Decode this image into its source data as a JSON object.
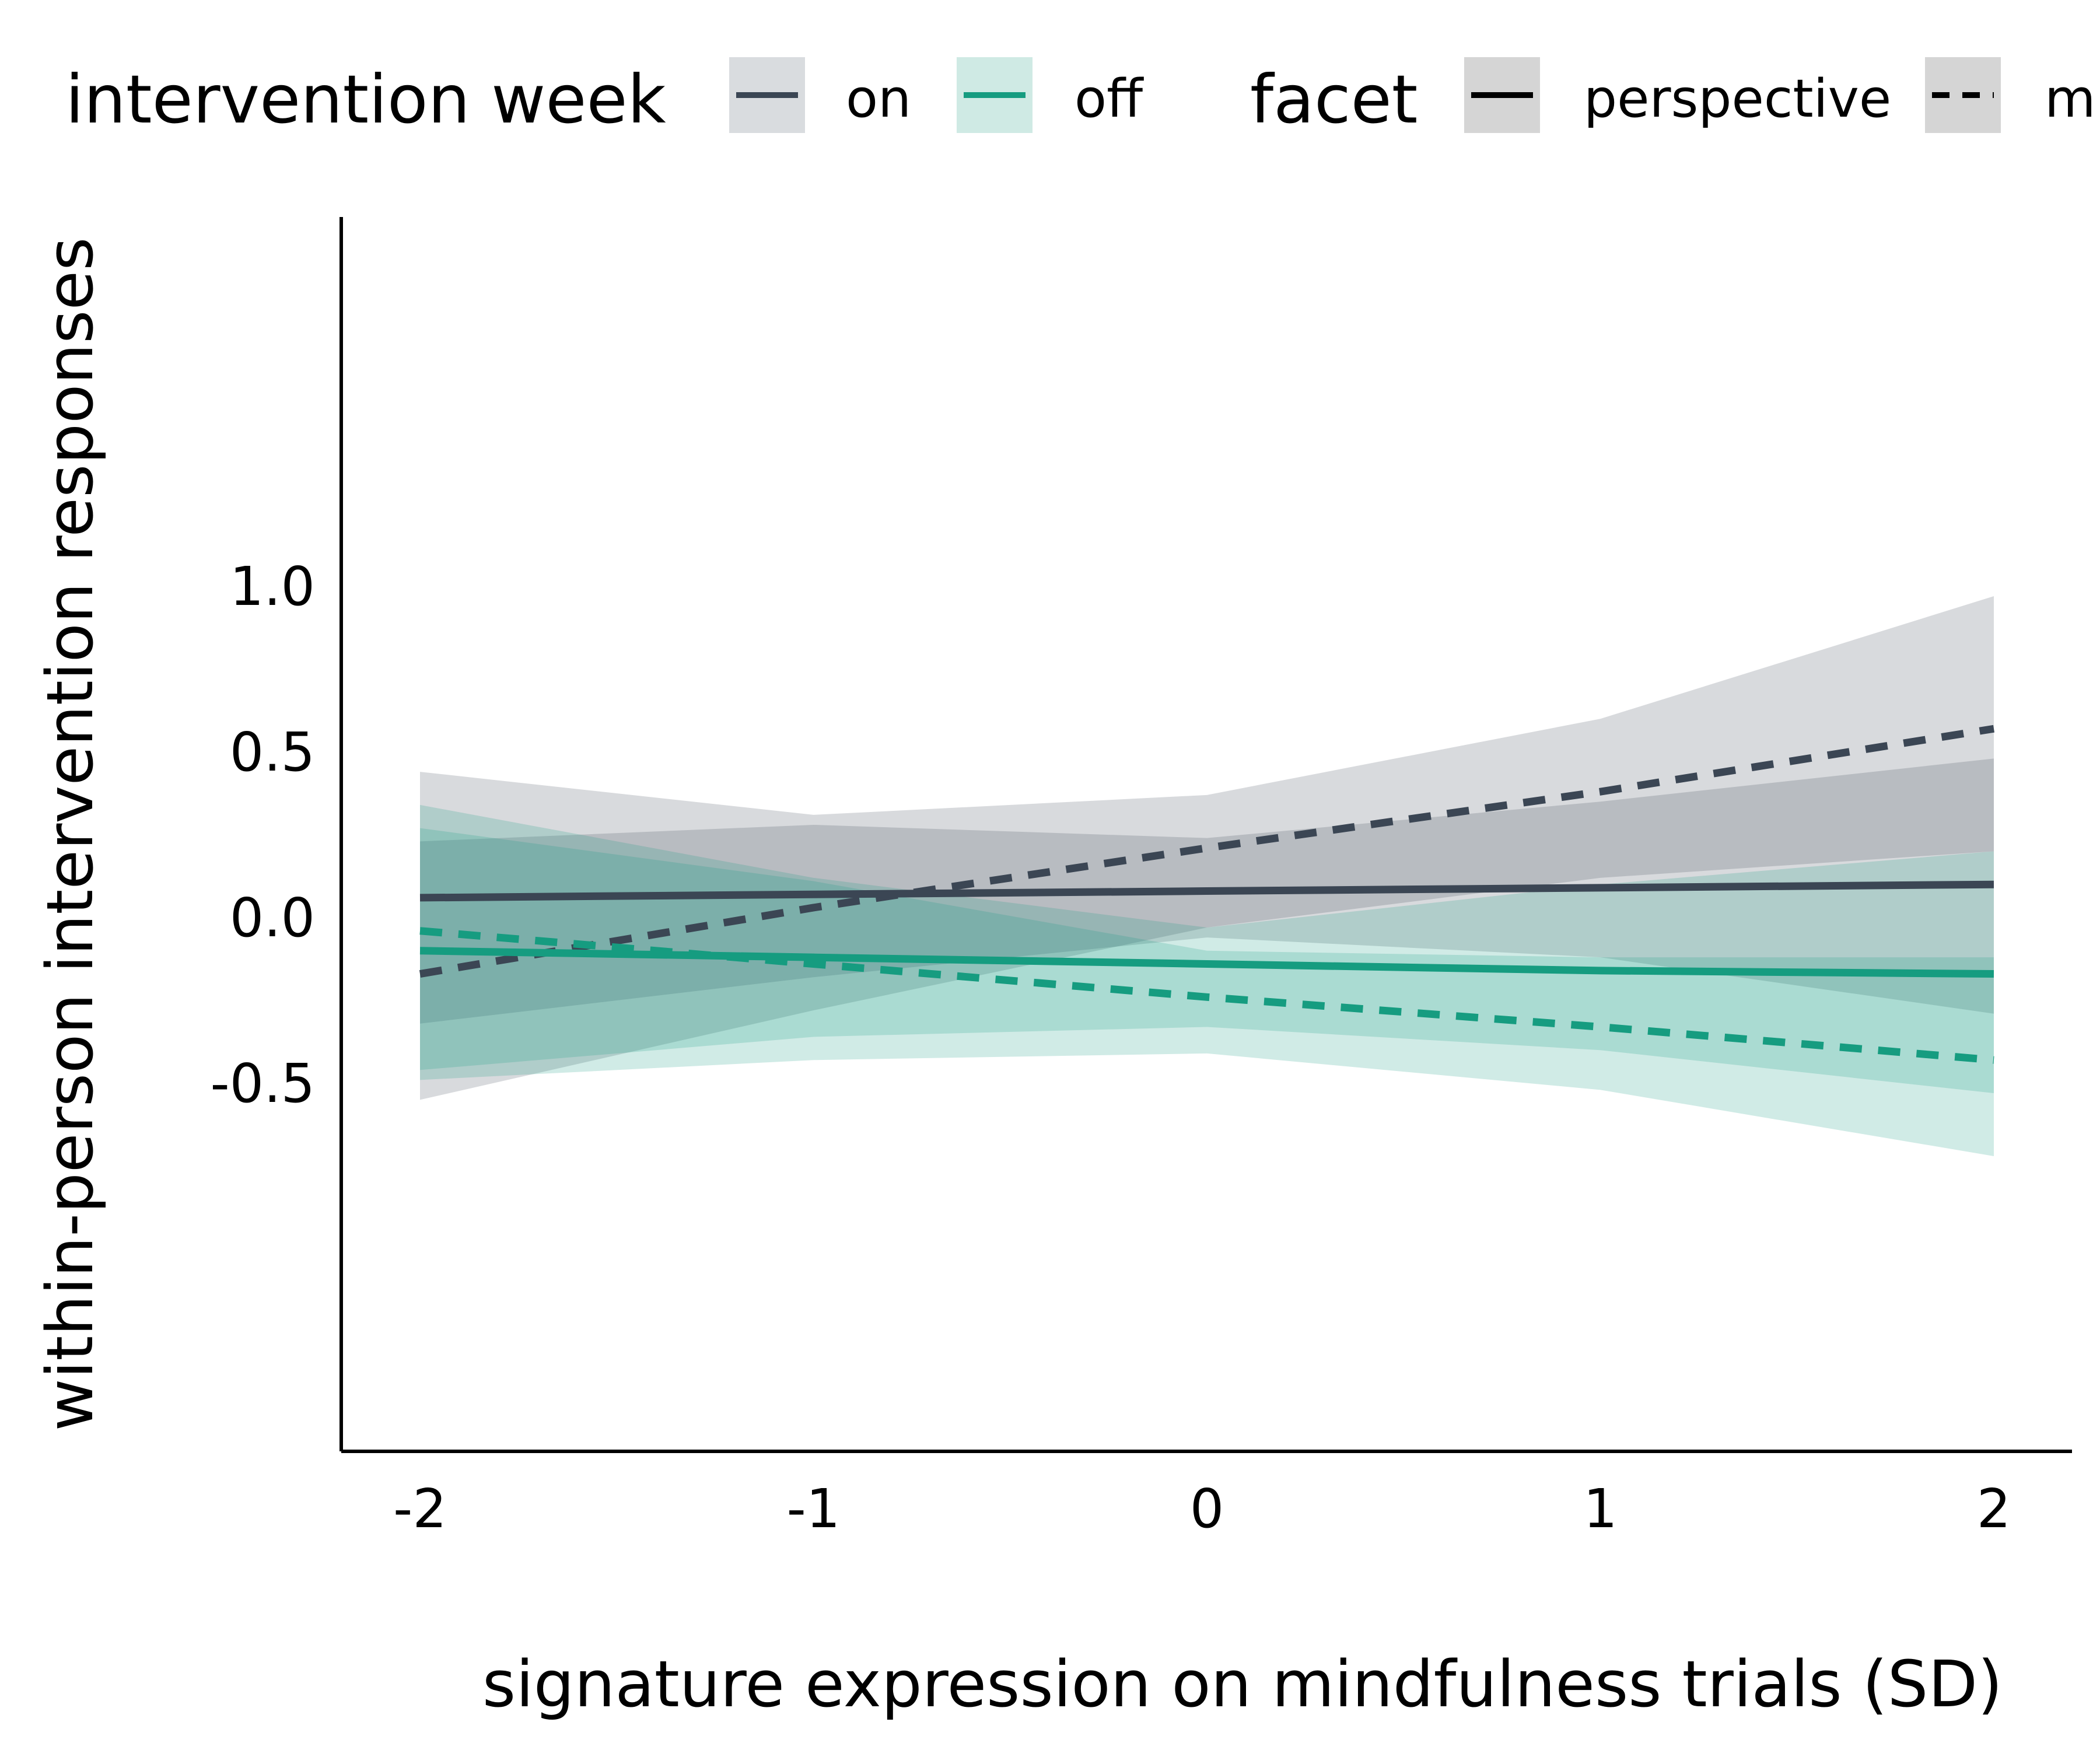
{
  "legend": {
    "group_title": "intervention week",
    "group_items": [
      {
        "label": "on",
        "color": "#3b4654"
      },
      {
        "label": "off",
        "color": "#169c80"
      }
    ],
    "facet_title": "facet",
    "facet_items": [
      {
        "label": "perspective",
        "dash": "solid"
      },
      {
        "label": "mi",
        "dash": "dashed"
      }
    ]
  },
  "chart_data": {
    "type": "line",
    "xlabel": "signature expression on mindfulness trials (SD)",
    "ylabel": "within-person intervention responses",
    "xlim": [
      -2.2,
      2.2
    ],
    "ylim": [
      -0.8,
      1.05
    ],
    "xticks": [
      -2,
      -1,
      0,
      1,
      2
    ],
    "xtick_labels": [
      "-2",
      "-1",
      "0",
      "1",
      "2"
    ],
    "yticks": [
      -0.5,
      0.0,
      0.5,
      1.0
    ],
    "ytick_labels": [
      "-0.5",
      "0.0",
      "0.5",
      "1.0"
    ],
    "grid": false,
    "legend_position": "top",
    "series": [
      {
        "group": "on",
        "facet": "mi",
        "color": "#3b4654",
        "dash": "dashed",
        "x": [
          -2,
          -1,
          0,
          1,
          2
        ],
        "y": [
          -0.17,
          0.03,
          0.21,
          0.38,
          0.57
        ],
        "band_lower": [
          -0.55,
          -0.28,
          -0.03,
          0.12,
          0.2
        ],
        "band_upper": [
          0.44,
          0.31,
          0.37,
          0.6,
          0.97
        ]
      },
      {
        "group": "on",
        "facet": "perspective",
        "color": "#3b4654",
        "dash": "solid",
        "x": [
          -2,
          -1,
          0,
          1,
          2
        ],
        "y": [
          0.06,
          0.07,
          0.08,
          0.09,
          0.1
        ],
        "band_lower": [
          -0.32,
          -0.18,
          -0.06,
          -0.12,
          -0.29
        ],
        "band_upper": [
          0.23,
          0.28,
          0.24,
          0.35,
          0.48
        ]
      },
      {
        "group": "off",
        "facet": "mi",
        "color": "#169c80",
        "dash": "dashed",
        "x": [
          -2,
          -1,
          0,
          1,
          2
        ],
        "y": [
          -0.04,
          -0.14,
          -0.24,
          -0.33,
          -0.43
        ],
        "band_lower": [
          -0.49,
          -0.43,
          -0.41,
          -0.52,
          -0.72
        ],
        "band_upper": [
          0.34,
          0.12,
          -0.03,
          0.1,
          0.2
        ]
      },
      {
        "group": "off",
        "facet": "perspective",
        "color": "#169c80",
        "dash": "solid",
        "x": [
          -2,
          -1,
          0,
          1,
          2
        ],
        "y": [
          -0.1,
          -0.12,
          -0.14,
          -0.16,
          -0.17
        ],
        "band_lower": [
          -0.46,
          -0.36,
          -0.33,
          -0.4,
          -0.53
        ],
        "band_upper": [
          0.27,
          0.11,
          -0.1,
          -0.12,
          -0.12
        ]
      }
    ]
  }
}
